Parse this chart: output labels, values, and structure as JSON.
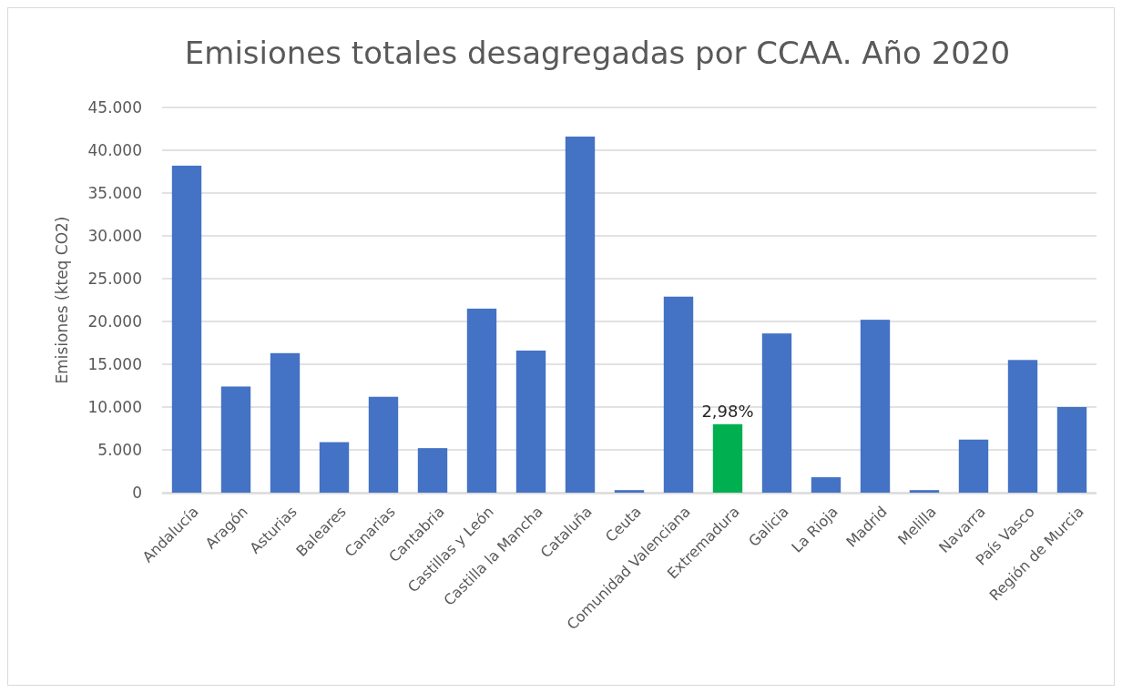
{
  "chart_data": {
    "type": "bar",
    "title": "Emisiones totales desagregadas por CCAA. Año 2020",
    "ylabel": "Emisiones (kteq CO2)",
    "categories": [
      "Andalucía",
      "Aragón",
      "Asturias",
      "Baleares",
      "Canarias",
      "Cantabria",
      "Castillas y León",
      "Castilla la Mancha",
      "Cataluña",
      "Ceuta",
      "Comunidad Valenciana",
      "Extremadura",
      "Galicia",
      "La Rioja",
      "Madrid",
      "Melilla",
      "Navarra",
      "País Vasco",
      "Región de Murcia"
    ],
    "values": [
      38200,
      12400,
      16300,
      5900,
      11200,
      5200,
      21500,
      16600,
      41600,
      300,
      22900,
      8000,
      18600,
      1800,
      20200,
      300,
      6200,
      15500,
      10000
    ],
    "colors": [
      "#4472c4",
      "#4472c4",
      "#4472c4",
      "#4472c4",
      "#4472c4",
      "#4472c4",
      "#4472c4",
      "#4472c4",
      "#4472c4",
      "#4472c4",
      "#4472c4",
      "#00b050",
      "#4472c4",
      "#4472c4",
      "#4472c4",
      "#4472c4",
      "#4472c4",
      "#4472c4",
      "#4472c4"
    ],
    "ylim": [
      0,
      45000
    ],
    "yticks": [
      {
        "value": 0,
        "label": "0"
      },
      {
        "value": 5000,
        "label": "5.000"
      },
      {
        "value": 10000,
        "label": "10.000"
      },
      {
        "value": 15000,
        "label": "15.000"
      },
      {
        "value": 20000,
        "label": "20.000"
      },
      {
        "value": 25000,
        "label": "25.000"
      },
      {
        "value": 30000,
        "label": "30.000"
      },
      {
        "value": 35000,
        "label": "35.000"
      },
      {
        "value": 40000,
        "label": "40.000"
      },
      {
        "value": 45000,
        "label": "45.000"
      }
    ],
    "grid": "y",
    "annotations": [
      {
        "text": "2,98%",
        "x": "Extremadura",
        "y": 8000
      }
    ]
  }
}
